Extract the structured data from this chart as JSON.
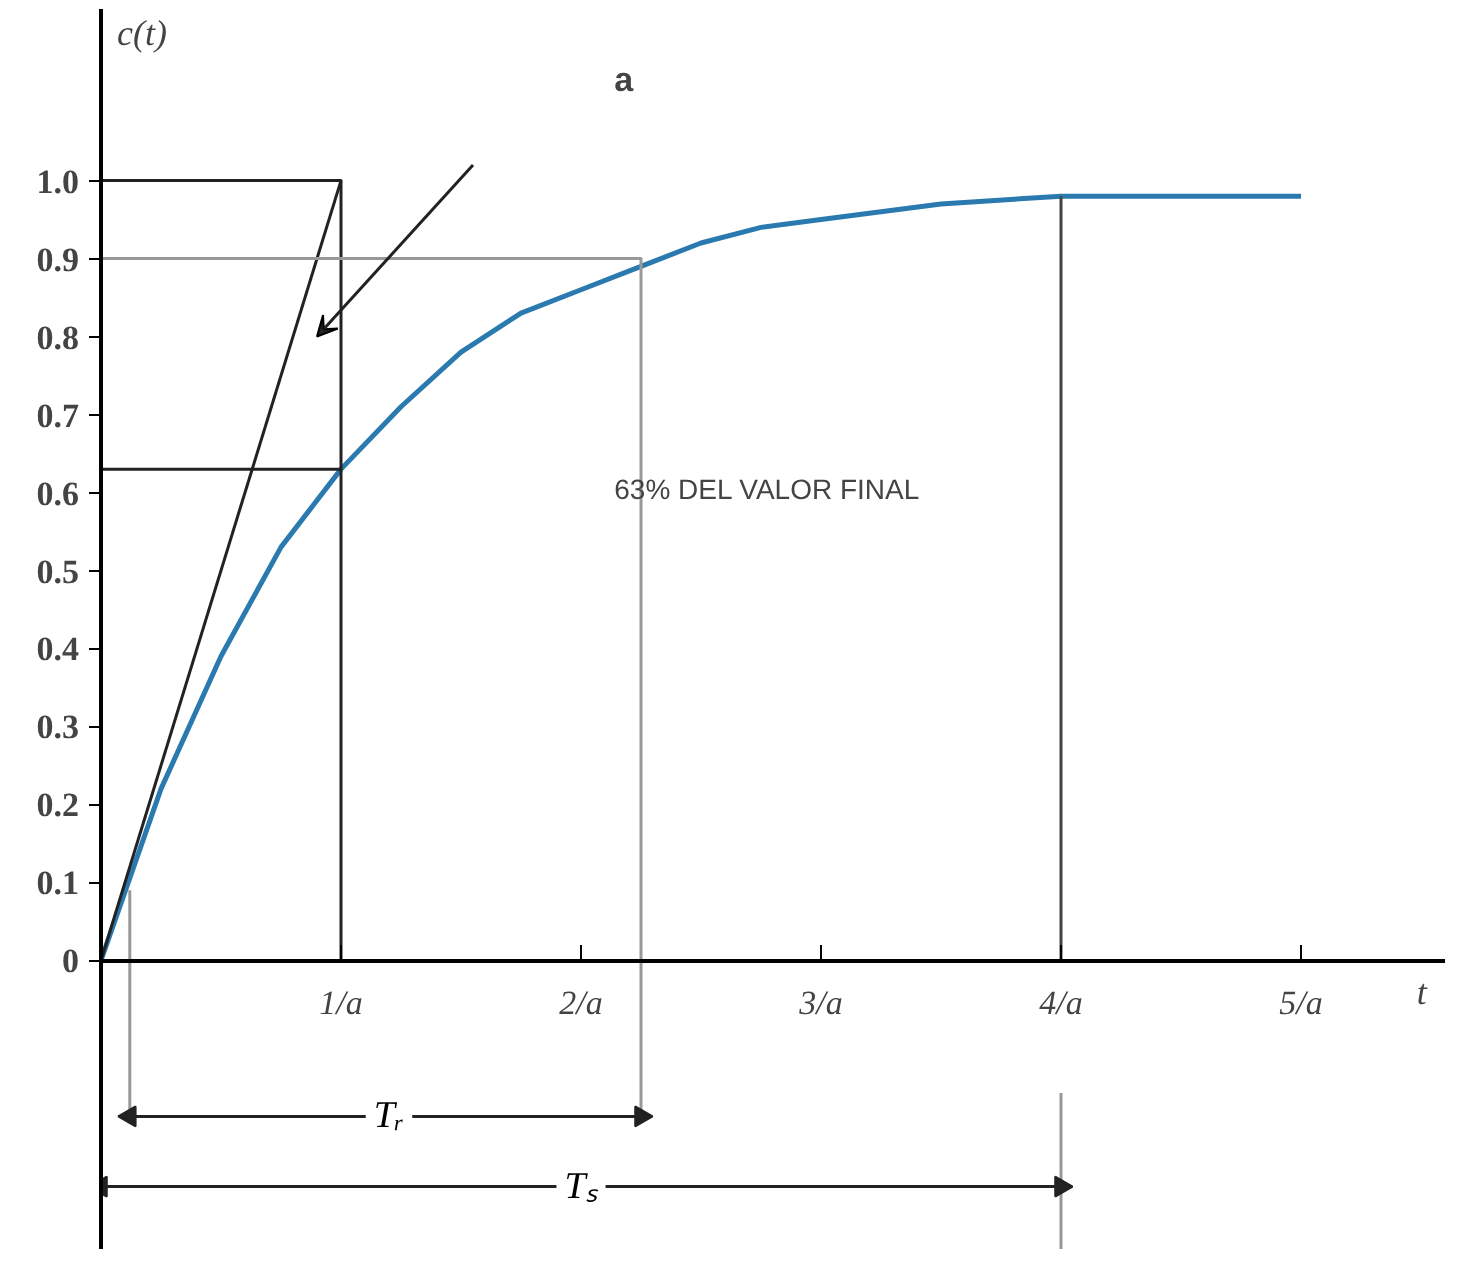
{
  "chart_data": {
    "type": "line",
    "xlabel": "t",
    "ylabel": "c(t)",
    "xlim": [
      0,
      5.6
    ],
    "ylim": [
      -0.37,
      1.22
    ],
    "xticks": [
      {
        "value": 1,
        "label": "1/a"
      },
      {
        "value": 2,
        "label": "2/a"
      },
      {
        "value": 3,
        "label": "3/a"
      },
      {
        "value": 4,
        "label": "4/a"
      },
      {
        "value": 5,
        "label": "5/a"
      }
    ],
    "yticks": [
      {
        "value": 0,
        "label": "0"
      },
      0.1,
      0.2,
      0.3,
      0.4,
      0.5,
      0.6,
      0.7,
      0.8,
      0.9,
      {
        "value": 1,
        "label": "1.0"
      }
    ],
    "series": [
      {
        "color": "#2a7ab0",
        "x": [
          0,
          0.25,
          0.5,
          0.75,
          1,
          1.25,
          1.5,
          1.75,
          2,
          2.25,
          2.5,
          2.75,
          3,
          3.5,
          4,
          4.5,
          5
        ],
        "values": [
          0,
          0.22,
          0.39,
          0.53,
          0.63,
          0.71,
          0.78,
          0.83,
          0.86,
          0.89,
          0.92,
          0.94,
          0.95,
          0.97,
          0.98,
          0.98,
          0.98
        ]
      },
      {
        "color": "#222222",
        "x": [
          0,
          1
        ],
        "values": [
          0,
          1
        ]
      },
      {
        "color": "#222222",
        "x": [
          0,
          1,
          1
        ],
        "values": [
          1,
          1,
          0
        ]
      },
      {
        "color": "#222222",
        "x": [
          0,
          1
        ],
        "values": [
          0.63,
          0.63
        ]
      },
      {
        "color": "#999999",
        "x": [
          0,
          2.25,
          2.25
        ],
        "values": [
          0.9,
          0.9,
          -0.2
        ]
      },
      {
        "color": "#999999",
        "x": [
          0.12,
          0.12
        ],
        "values": [
          0.09,
          -0.2
        ]
      },
      {
        "color": "#444444",
        "x": [
          4,
          4
        ],
        "values": [
          0.98,
          0
        ]
      },
      {
        "color": "#999999",
        "x": [
          4,
          4
        ],
        "values": [
          -0.17,
          -0.37
        ]
      },
      {
        "color": "#222222",
        "marker": "triangle",
        "x": [
          0.12,
          2.25
        ],
        "values": [
          -0.2,
          -0.2
        ]
      },
      {
        "color": "#222222",
        "marker": "triangle",
        "x": [
          0,
          4
        ],
        "values": [
          -0.29,
          -0.29
        ]
      }
    ],
    "annotations": [
      "a",
      "63% DEL VALOR FINAL",
      {
        "text": "Tᵣ",
        "x": 1.2,
        "y": -0.2
      },
      {
        "text": "Tₛ",
        "x": 2.0,
        "y": -0.29
      }
    ]
  }
}
